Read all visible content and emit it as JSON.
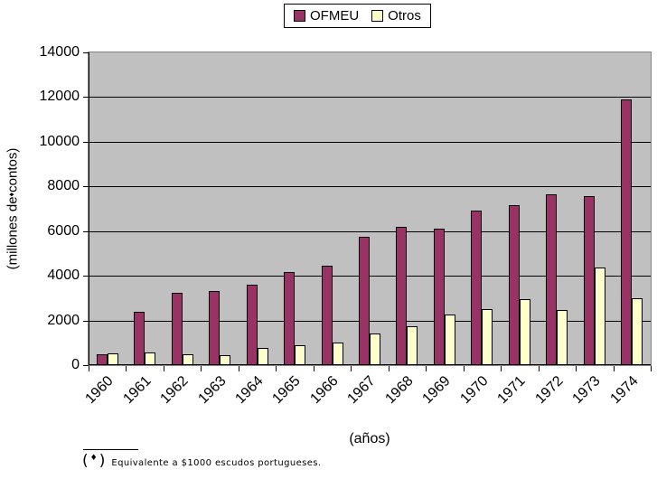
{
  "legend": {
    "items": [
      {
        "label": "OFMEU",
        "color": "#993366"
      },
      {
        "label": "Otros",
        "color": "#FFFFCC"
      }
    ]
  },
  "y_axis": {
    "title_prefix": "(millones de",
    "title_symbol": "♦",
    "title_suffix": "contos)",
    "tick_labels": [
      "0",
      "2000",
      "4000",
      "6000",
      "8000",
      "10000",
      "12000",
      "14000"
    ]
  },
  "x_axis": {
    "title": "(años)"
  },
  "footnote": {
    "open_paren": "(",
    "symbol": "♦",
    "close_paren": ")",
    "text": "Equivalente a $1000 escudos portugueses."
  },
  "colors": {
    "plot_background": "#C0C0C0",
    "plot_border": "#848484",
    "gridline": "#000000",
    "ofmeu": "#993366",
    "otros": "#FFFFCC"
  },
  "chart_data": {
    "type": "bar",
    "title": "",
    "categories": [
      "1960",
      "1961",
      "1962",
      "1963",
      "1964",
      "1965",
      "1966",
      "1967",
      "1968",
      "1969",
      "1970",
      "1971",
      "1972",
      "1973",
      "1974"
    ],
    "series": [
      {
        "name": "OFMEU",
        "color": "#993366",
        "values": [
          500,
          2400,
          3250,
          3300,
          3600,
          4150,
          4450,
          5750,
          6200,
          6100,
          6900,
          7150,
          7650,
          7550,
          11900
        ]
      },
      {
        "name": "Otros",
        "color": "#FFFFCC",
        "values": [
          520,
          550,
          500,
          450,
          750,
          900,
          1000,
          1400,
          1750,
          2250,
          2500,
          2950,
          2450,
          4350,
          3000
        ]
      }
    ],
    "xlabel": "(años)",
    "ylabel": "(millones de♦contos)",
    "ylim": [
      0,
      14000
    ],
    "yticks": [
      0,
      2000,
      4000,
      6000,
      8000,
      10000,
      12000,
      14000
    ],
    "grid": true,
    "legend_position": "top-center",
    "plot_background": "#C0C0C0"
  }
}
